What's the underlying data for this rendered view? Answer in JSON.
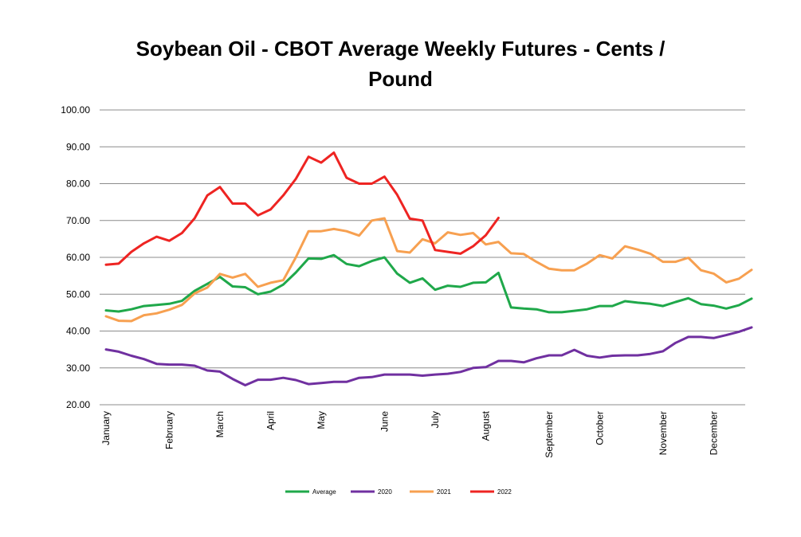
{
  "chart_data": {
    "type": "line",
    "title_lines": [
      "Soybean Oil - CBOT Average Weekly Futures - Cents /",
      "Pound"
    ],
    "xlabel": "",
    "ylabel": "",
    "ylim": [
      20,
      100
    ],
    "y_ticks": [
      "20.00",
      "30.00",
      "40.00",
      "50.00",
      "60.00",
      "70.00",
      "80.00",
      "90.00",
      "100.00"
    ],
    "x_ticks": [
      {
        "label": "January",
        "week": 1
      },
      {
        "label": "February",
        "week": 6
      },
      {
        "label": "March",
        "week": 10
      },
      {
        "label": "April",
        "week": 14
      },
      {
        "label": "May",
        "week": 18
      },
      {
        "label": "June",
        "week": 23
      },
      {
        "label": "July",
        "week": 27
      },
      {
        "label": "August",
        "week": 31
      },
      {
        "label": "September",
        "week": 36
      },
      {
        "label": "October",
        "week": 40
      },
      {
        "label": "November",
        "week": 45
      },
      {
        "label": "December",
        "week": 49
      }
    ],
    "grid": true,
    "legend_position": "bottom",
    "series": [
      {
        "name": "Average",
        "color": "#1fa84a",
        "values": [
          45.6,
          45.3,
          45.9,
          46.8,
          47.1,
          47.4,
          48.2,
          50.9,
          52.8,
          54.7,
          52.1,
          51.9,
          50.0,
          50.7,
          52.6,
          55.9,
          59.7,
          59.6,
          60.6,
          58.2,
          57.6,
          59.0,
          60.0,
          55.6,
          53.1,
          54.3,
          51.2,
          52.3,
          52.0,
          53.1,
          53.2,
          55.8,
          46.4,
          46.1,
          45.9,
          45.1,
          45.1,
          45.5,
          45.9,
          46.8,
          46.8,
          48.1,
          47.7,
          47.4,
          46.8,
          47.9,
          48.9,
          47.3,
          46.9,
          46.1,
          47.0,
          48.8
        ]
      },
      {
        "name": "2020",
        "color": "#7030a0",
        "values": [
          35.0,
          34.4,
          33.3,
          32.4,
          31.1,
          30.9,
          30.9,
          30.6,
          29.3,
          29.0,
          27.0,
          25.3,
          26.8,
          26.8,
          27.3,
          26.7,
          25.6,
          25.9,
          26.2,
          26.2,
          27.3,
          27.5,
          28.2,
          28.2,
          28.2,
          27.9,
          28.2,
          28.4,
          28.9,
          30.0,
          30.2,
          31.9,
          31.9,
          31.5,
          32.6,
          33.4,
          33.4,
          34.9,
          33.3,
          32.8,
          33.3,
          33.4,
          33.4,
          33.8,
          34.5,
          36.8,
          38.4,
          38.4,
          38.1,
          38.9,
          39.8,
          41.0
        ]
      },
      {
        "name": "2021",
        "color": "#f7a050",
        "values": [
          44.0,
          42.8,
          42.7,
          44.3,
          44.8,
          45.8,
          47.1,
          50.2,
          51.8,
          55.5,
          54.5,
          55.5,
          52.0,
          53.1,
          53.8,
          60.0,
          67.1,
          67.1,
          67.7,
          67.1,
          65.9,
          70.0,
          70.6,
          61.7,
          61.3,
          64.9,
          63.8,
          66.8,
          66.1,
          66.6,
          63.5,
          64.2,
          61.1,
          60.9,
          58.8,
          56.9,
          56.5,
          56.5,
          58.3,
          60.6,
          59.7,
          63.0,
          62.1,
          61.0,
          58.8,
          58.8,
          59.9,
          56.5,
          55.6,
          53.2,
          54.2,
          56.6
        ]
      },
      {
        "name": "2022",
        "color": "#ee2422",
        "values": [
          58.0,
          58.3,
          61.5,
          63.8,
          65.6,
          64.5,
          66.6,
          70.6,
          76.8,
          79.1,
          74.6,
          74.6,
          71.4,
          73.0,
          76.8,
          81.3,
          87.3,
          85.7,
          88.4,
          81.6,
          80.0,
          80.0,
          81.9,
          77.0,
          70.5,
          70.0,
          62.0,
          61.5,
          61.0,
          63.0,
          66.0,
          70.7
        ]
      }
    ]
  }
}
